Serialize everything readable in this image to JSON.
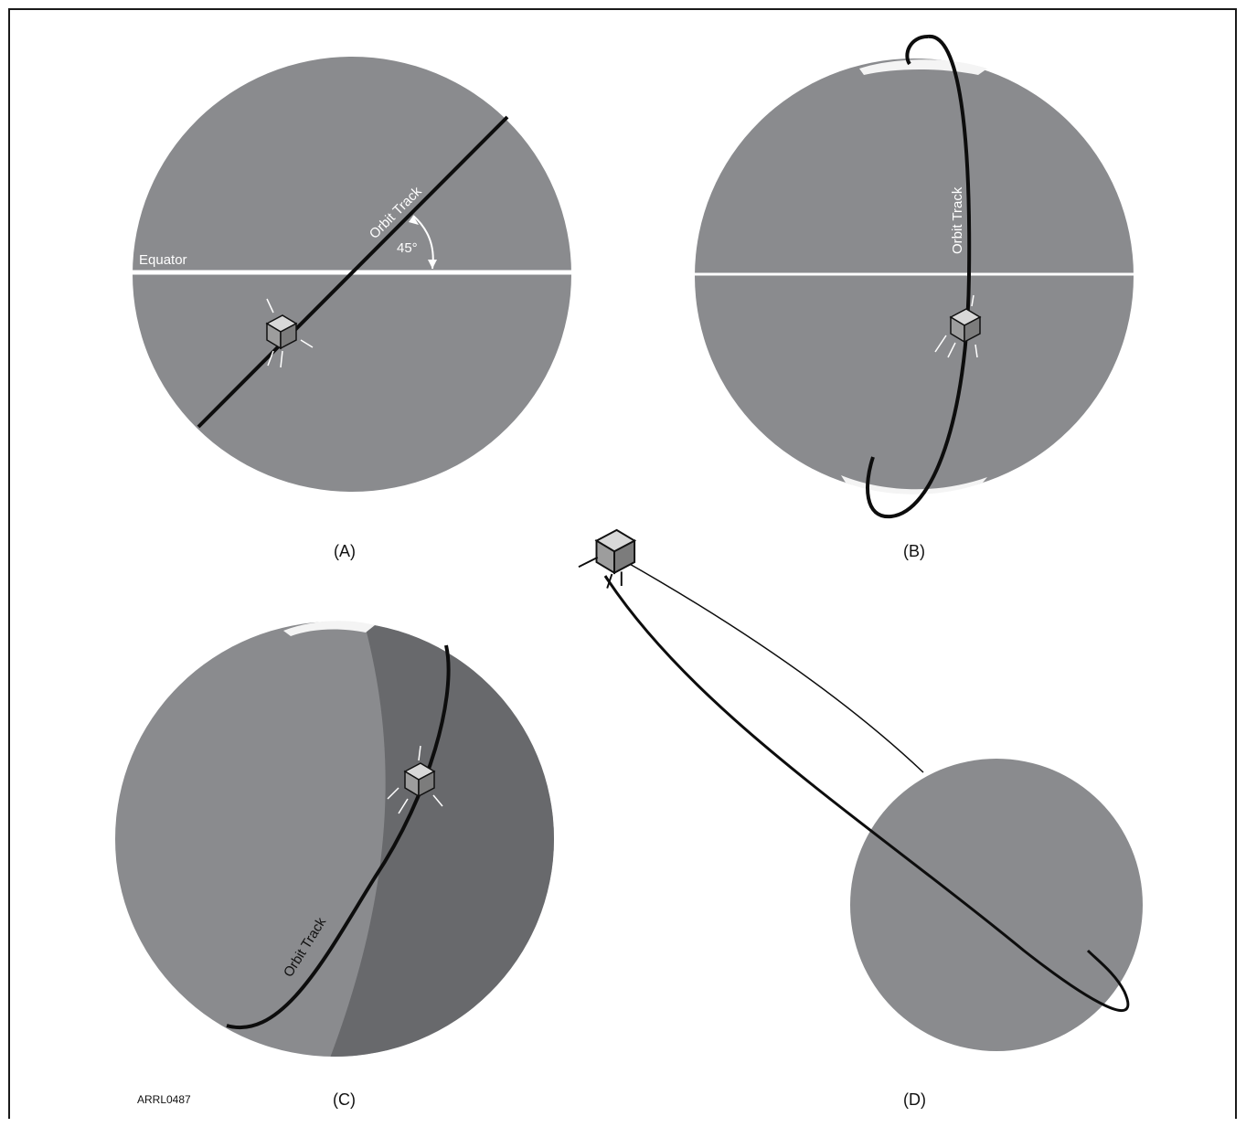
{
  "figure": {
    "panels": [
      {
        "id": "A",
        "label": "(A)",
        "orbit_track": "Orbit Track",
        "equator": "Equator",
        "angle": "45°"
      },
      {
        "id": "B",
        "label": "(B)",
        "orbit_track": "Orbit Track"
      },
      {
        "id": "C",
        "label": "(C)",
        "orbit_track": "Orbit Track"
      },
      {
        "id": "D",
        "label": "(D)"
      }
    ],
    "figure_id": "ARRL0487"
  },
  "colors": {
    "ocean": "#8a8b8e",
    "land": "#c2c3c4",
    "night": "#5c5d60",
    "ice": "#f4f4f4",
    "line": "#0d0d0d"
  }
}
